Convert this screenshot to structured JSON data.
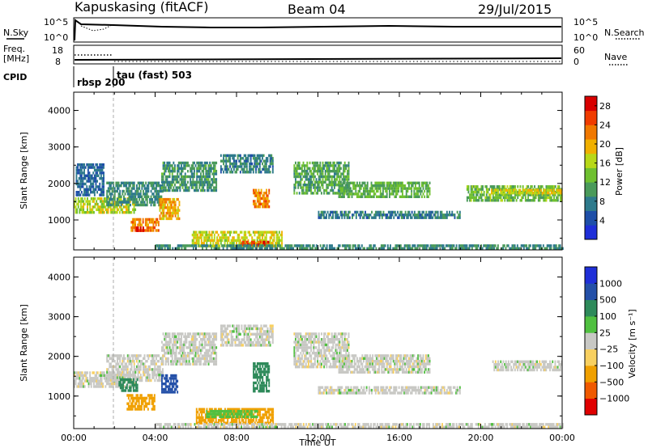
{
  "header": {
    "station": "Kapuskasing (fitACF)",
    "beam": "Beam 04",
    "date": "29/Jul/2015"
  },
  "side_labels": {
    "nsky": "N.Sky",
    "freq": "Freq.",
    "freq_unit": "[MHz]",
    "cpid": "CPID",
    "nsearch": "N.Search",
    "nave": "Nave"
  },
  "cpid_annotations": {
    "mode1": "rbsp 200",
    "mode2": "tau (fast) 503"
  },
  "noise_ticks": {
    "left": [
      "10^5",
      "10^0"
    ],
    "right": [
      "10^5",
      "10^0"
    ]
  },
  "freq_ticks": {
    "left": [
      "18",
      "8"
    ],
    "right": [
      "60",
      "0"
    ]
  },
  "colors": {
    "power": [
      "#1f2fd8",
      "#1e4fa8",
      "#2e7a8c",
      "#4a9a5a",
      "#6fc030",
      "#b8d818",
      "#f0b000",
      "#f07800",
      "#f03c00",
      "#d80000"
    ],
    "velocity": [
      "#e00000",
      "#f05a00",
      "#f0a000",
      "#f8d060",
      "#c8c8c4",
      "#50c040",
      "#2e8a5a",
      "#2450a8",
      "#1f2fd8"
    ],
    "ground": "#c8c8c4"
  },
  "chart_data": [
    {
      "type": "heatmap",
      "title": "Power",
      "xlabel": "",
      "ylabel": "Slant Range [km]",
      "x_ticks": [
        "00:00",
        "04:00",
        "08:00",
        "12:00",
        "16:00",
        "20:00",
        "00:00"
      ],
      "y_ticks": [
        "1000",
        "2000",
        "3000",
        "4000"
      ],
      "xlim_hours": [
        0,
        24
      ],
      "ylim_km": [
        180,
        4500
      ],
      "colorbar": {
        "label": "Power [dB]",
        "ticks": [
          "4",
          "8",
          "12",
          "16",
          "20",
          "24",
          "28"
        ],
        "range": [
          0,
          30
        ]
      },
      "regions": [
        {
          "t0": 0.0,
          "t1": 3.0,
          "r0": 1220,
          "r1": 1620,
          "value": 16
        },
        {
          "t0": 0.1,
          "t1": 1.5,
          "r0": 1650,
          "r1": 2550,
          "value": 6
        },
        {
          "t0": 1.6,
          "t1": 4.4,
          "r0": 1400,
          "r1": 2050,
          "value": 9
        },
        {
          "t0": 2.8,
          "t1": 4.2,
          "r0": 700,
          "r1": 1050,
          "value": 22
        },
        {
          "t0": 3.0,
          "t1": 3.4,
          "r0": 680,
          "r1": 820,
          "value": 28
        },
        {
          "t0": 4.2,
          "t1": 5.2,
          "r0": 1050,
          "r1": 1600,
          "value": 20
        },
        {
          "t0": 4.3,
          "t1": 7.0,
          "r0": 1800,
          "r1": 2600,
          "value": 10
        },
        {
          "t0": 7.2,
          "t1": 9.8,
          "r0": 2300,
          "r1": 2800,
          "value": 8
        },
        {
          "t0": 5.8,
          "t1": 10.2,
          "r0": 300,
          "r1": 700,
          "value": 17
        },
        {
          "t0": 8.2,
          "t1": 9.6,
          "r0": 280,
          "r1": 430,
          "value": 26
        },
        {
          "t0": 8.8,
          "t1": 9.6,
          "r0": 1350,
          "r1": 1850,
          "value": 22
        },
        {
          "t0": 10.8,
          "t1": 13.5,
          "r0": 1700,
          "r1": 2600,
          "value": 11
        },
        {
          "t0": 13.0,
          "t1": 17.5,
          "r0": 1600,
          "r1": 2050,
          "value": 12
        },
        {
          "t0": 12.0,
          "t1": 19.0,
          "r0": 1050,
          "r1": 1250,
          "value": 8
        },
        {
          "t0": 4.0,
          "t1": 24.0,
          "r0": 220,
          "r1": 330,
          "value": 9
        },
        {
          "t0": 19.3,
          "t1": 24.0,
          "r0": 1550,
          "r1": 1950,
          "value": 13
        },
        {
          "t0": 20.5,
          "t1": 24.0,
          "r0": 1700,
          "r1": 1850,
          "value": 18
        }
      ]
    },
    {
      "type": "heatmap",
      "title": "Velocity",
      "xlabel": "Time UT",
      "ylabel": "Slant Range [km]",
      "x_ticks": [
        "00:00",
        "04:00",
        "08:00",
        "12:00",
        "16:00",
        "20:00",
        "00:00"
      ],
      "y_ticks": [
        "1000",
        "2000",
        "3000",
        "4000"
      ],
      "xlim_hours": [
        0,
        24
      ],
      "ylim_km": [
        180,
        4500
      ],
      "colorbar": {
        "label": "Velocity [m s⁻¹]",
        "ticks": [
          "1000",
          "500",
          "100",
          "25",
          "-25",
          "-100",
          "-500",
          "-1000"
        ],
        "range": [
          -1100,
          1100
        ]
      },
      "regions": [
        {
          "t0": 0.0,
          "t1": 3.0,
          "r0": 1220,
          "r1": 1620,
          "value": 0
        },
        {
          "t0": 1.6,
          "t1": 4.4,
          "r0": 1400,
          "r1": 2050,
          "value": 0
        },
        {
          "t0": 4.3,
          "t1": 7.0,
          "r0": 1800,
          "r1": 2600,
          "value": 0
        },
        {
          "t0": 7.2,
          "t1": 9.8,
          "r0": 2300,
          "r1": 2800,
          "value": 0
        },
        {
          "t0": 10.8,
          "t1": 13.5,
          "r0": 1700,
          "r1": 2600,
          "value": 0
        },
        {
          "t0": 13.0,
          "t1": 17.5,
          "r0": 1600,
          "r1": 2050,
          "value": 0
        },
        {
          "t0": 12.0,
          "t1": 19.0,
          "r0": 1050,
          "r1": 1250,
          "value": 0
        },
        {
          "t0": 20.5,
          "t1": 24.0,
          "r0": 1650,
          "r1": 1900,
          "value": 0
        },
        {
          "t0": 2.6,
          "t1": 4.0,
          "r0": 700,
          "r1": 1050,
          "value": -300
        },
        {
          "t0": 2.2,
          "t1": 3.1,
          "r0": 1150,
          "r1": 1450,
          "value": 200
        },
        {
          "t0": 4.3,
          "t1": 5.1,
          "r0": 1100,
          "r1": 1550,
          "value": 600
        },
        {
          "t0": 6.0,
          "t1": 9.8,
          "r0": 300,
          "r1": 700,
          "value": -150
        },
        {
          "t0": 8.8,
          "t1": 9.6,
          "r0": 1150,
          "r1": 1850,
          "value": 300
        },
        {
          "t0": 6.5,
          "t1": 9.0,
          "r0": 450,
          "r1": 650,
          "value": 60
        },
        {
          "t0": 4.0,
          "t1": 24.0,
          "r0": 220,
          "r1": 320,
          "value": 0
        }
      ]
    }
  ]
}
